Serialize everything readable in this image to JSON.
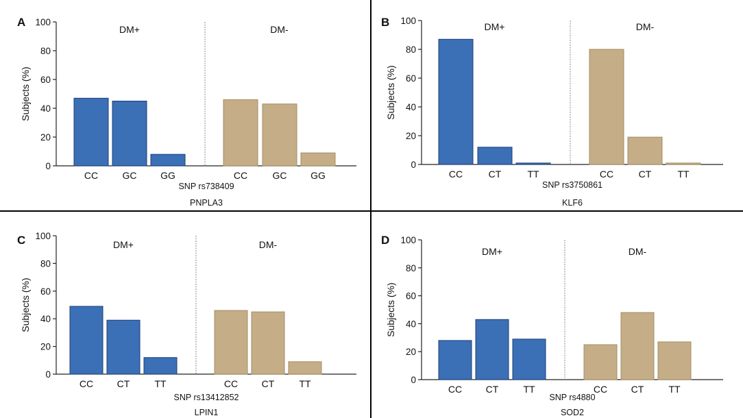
{
  "colors": {
    "dm_plus": "#3b6fb6",
    "dm_minus": "#c4ad87",
    "bar_edge": "#1f3f77",
    "bar_edge_minus": "#a58d66"
  },
  "chart_data": [
    {
      "type": "bar",
      "panel": "A",
      "ylabel": "Subjects (%)",
      "ylim": [
        0,
        100
      ],
      "yticks": [
        0,
        20,
        40,
        60,
        80,
        100
      ],
      "categories": [
        "CC",
        "GC",
        "GG"
      ],
      "groups": [
        "DM+",
        "DM-"
      ],
      "series": [
        {
          "name": "DM+",
          "values": [
            47,
            45,
            8
          ]
        },
        {
          "name": "DM-",
          "values": [
            46,
            43,
            9
          ]
        }
      ],
      "snp": "SNP rs738409",
      "gene": "PNPLA3"
    },
    {
      "type": "bar",
      "panel": "B",
      "ylabel": "Subjects (%)",
      "ylim": [
        0,
        100
      ],
      "yticks": [
        0,
        20,
        40,
        60,
        80,
        100
      ],
      "categories": [
        "CC",
        "CT",
        "TT"
      ],
      "groups": [
        "DM+",
        "DM-"
      ],
      "series": [
        {
          "name": "DM+",
          "values": [
            87,
            12,
            1
          ]
        },
        {
          "name": "DM-",
          "values": [
            80,
            19,
            1
          ]
        }
      ],
      "snp": "SNP rs3750861",
      "gene": "KLF6"
    },
    {
      "type": "bar",
      "panel": "C",
      "ylabel": "Subjects (%)",
      "ylim": [
        0,
        100
      ],
      "yticks": [
        0,
        20,
        40,
        60,
        80,
        100
      ],
      "categories": [
        "CC",
        "CT",
        "TT"
      ],
      "groups": [
        "DM+",
        "DM-"
      ],
      "series": [
        {
          "name": "DM+",
          "values": [
            49,
            39,
            12
          ]
        },
        {
          "name": "DM-",
          "values": [
            46,
            45,
            9
          ]
        }
      ],
      "snp": "SNP rs13412852",
      "gene": "LPIN1"
    },
    {
      "type": "bar",
      "panel": "D",
      "ylabel": "Subjects (%)",
      "ylim": [
        0,
        100
      ],
      "yticks": [
        0,
        20,
        40,
        60,
        80,
        100
      ],
      "categories": [
        "CC",
        "CT",
        "TT"
      ],
      "groups": [
        "DM+",
        "DM-"
      ],
      "series": [
        {
          "name": "DM+",
          "values": [
            28,
            43,
            29
          ]
        },
        {
          "name": "DM-",
          "values": [
            25,
            48,
            27
          ]
        }
      ],
      "snp": "SNP rs4880",
      "gene": "SOD2"
    }
  ]
}
